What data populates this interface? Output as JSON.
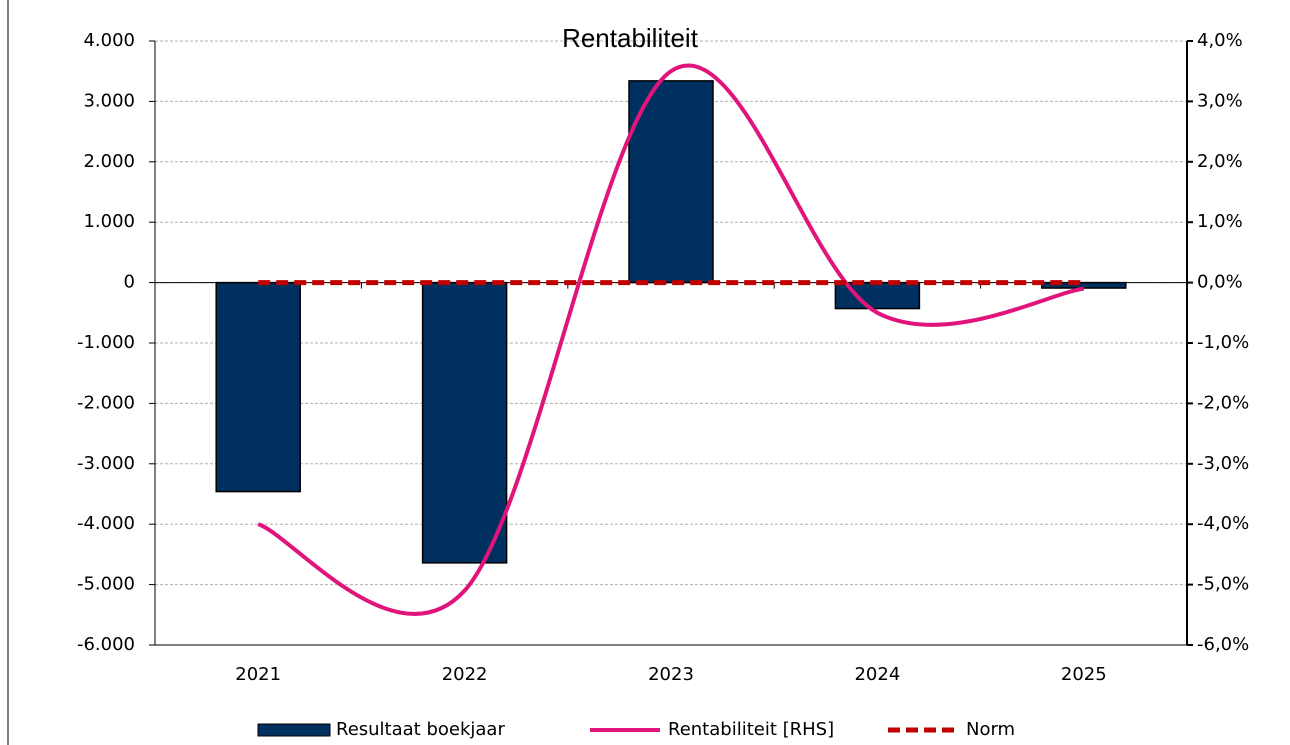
{
  "chart_data": {
    "type": "bar-line",
    "title": "Rentabiliteit",
    "categories": [
      "2021",
      "2022",
      "2023",
      "2024",
      "2025"
    ],
    "series": [
      {
        "name": "Resultaat boekjaar",
        "type": "bar",
        "color": "#003060",
        "values": [
          -3460,
          -4640,
          3340,
          -430,
          -90
        ]
      },
      {
        "name": "Rentabiliteit [RHS]",
        "type": "line",
        "axis": "y2",
        "smooth": true,
        "color": "#e0147a",
        "values": [
          -4.0,
          -5.1,
          3.5,
          -0.5,
          -0.1
        ]
      },
      {
        "name": "Norm",
        "type": "line",
        "dashed": true,
        "color": "#c00000",
        "values": [
          0,
          0,
          0,
          0,
          0
        ]
      }
    ],
    "ylim": [
      -6000,
      4000
    ],
    "yticks": [
      {
        "value": -6000,
        "label": "-6.000"
      },
      {
        "value": -5000,
        "label": "-5.000"
      },
      {
        "value": -4000,
        "label": "-4.000"
      },
      {
        "value": -3000,
        "label": "-3.000"
      },
      {
        "value": -2000,
        "label": "-2.000"
      },
      {
        "value": -1000,
        "label": "-1.000"
      },
      0,
      {
        "value": 1000,
        "label": "1.000"
      },
      {
        "value": 2000,
        "label": "2.000"
      },
      {
        "value": 3000,
        "label": "3.000"
      },
      {
        "value": 4000,
        "label": "4.000"
      }
    ],
    "y2lim": [
      -6,
      4
    ],
    "y2ticks": [
      {
        "value": -6,
        "label": "-6,0%"
      },
      {
        "value": -5,
        "label": "-5,0%"
      },
      {
        "value": -4,
        "label": "-4,0%"
      },
      {
        "value": -3,
        "label": "-3,0%"
      },
      {
        "value": -2,
        "label": "-2,0%"
      },
      {
        "value": -1,
        "label": "-1,0%"
      },
      {
        "value": 0,
        "label": "0,0%"
      },
      {
        "value": 1,
        "label": "1,0%"
      },
      {
        "value": 2,
        "label": "2,0%"
      },
      {
        "value": 3,
        "label": "3,0%"
      },
      {
        "value": 4,
        "label": "4,0%"
      }
    ],
    "grid": true,
    "legend": "bottom"
  }
}
